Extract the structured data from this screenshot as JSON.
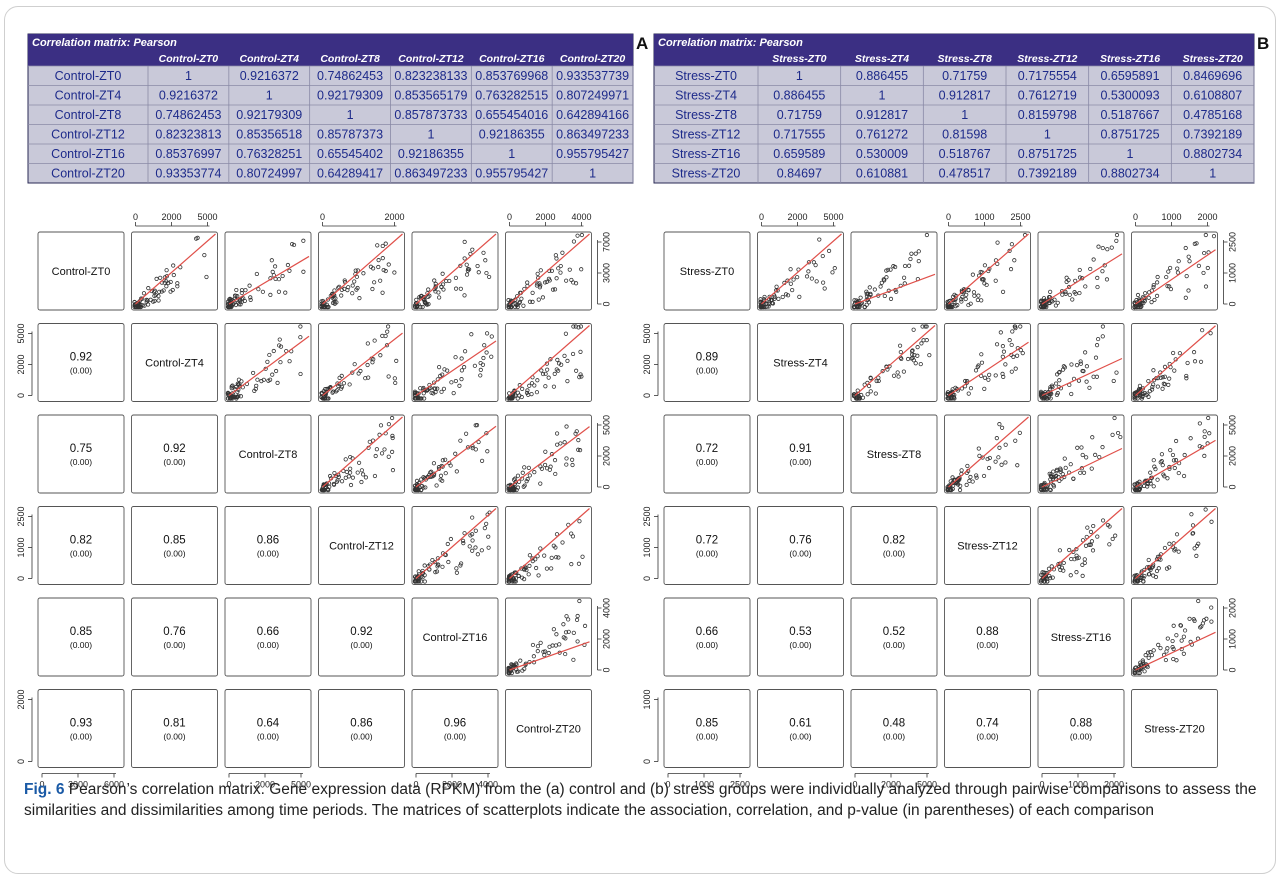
{
  "panels": [
    {
      "letter": "A",
      "matrix_title": "Correlation matrix: Pearson",
      "headers": [
        "Control-ZT0",
        "Control-ZT4",
        "Control-ZT8",
        "Control-ZT12",
        "Control-ZT16",
        "Control-ZT20"
      ],
      "rows": [
        {
          "label": "Control-ZT0",
          "values": [
            "1",
            "0.9216372",
            "0.74862453",
            "0.823238133",
            "0.853769968",
            "0.933537739"
          ]
        },
        {
          "label": "Control-ZT4",
          "values": [
            "0.9216372",
            "1",
            "0.92179309",
            "0.853565179",
            "0.763282515",
            "0.807249971"
          ]
        },
        {
          "label": "Control-ZT8",
          "values": [
            "0.74862453",
            "0.92179309",
            "1",
            "0.857873733",
            "0.655454016",
            "0.642894166"
          ]
        },
        {
          "label": "Control-ZT12",
          "values": [
            "0.82323813",
            "0.85356518",
            "0.85787373",
            "1",
            "0.92186355",
            "0.863497233"
          ]
        },
        {
          "label": "Control-ZT16",
          "values": [
            "0.85376997",
            "0.76328251",
            "0.65545402",
            "0.92186355",
            "1",
            "0.955795427"
          ]
        },
        {
          "label": "Control-ZT20",
          "values": [
            "0.93353774",
            "0.80724997",
            "0.64289417",
            "0.863497233",
            "0.955795427",
            "1"
          ]
        }
      ],
      "diag": [
        "Control-ZT0",
        "Control-ZT4",
        "Control-ZT8",
        "Control-ZT12",
        "Control-ZT16",
        "Control-ZT20"
      ],
      "lower": [
        [
          null,
          null,
          null,
          null,
          null,
          null
        ],
        [
          "0.92",
          null,
          null,
          null,
          null,
          null
        ],
        [
          "0.75",
          "0.92",
          null,
          null,
          null,
          null
        ],
        [
          "0.82",
          "0.85",
          "0.86",
          null,
          null,
          null
        ],
        [
          "0.85",
          "0.76",
          "0.66",
          "0.92",
          null,
          null
        ],
        [
          "0.93",
          "0.81",
          "0.64",
          "0.86",
          "0.96",
          null
        ]
      ],
      "pvalue": "(0.00)",
      "top_ticks": [
        [
          "0",
          "2000",
          "5000"
        ],
        null,
        [
          "0",
          "2000"
        ],
        null,
        [
          "0",
          "2000",
          "4000"
        ]
      ],
      "top_ticks_second": [
        null,
        null,
        [
          "0",
          "1000",
          "2500"
        ],
        null,
        [
          "0",
          "2000",
          "4000"
        ]
      ],
      "bottom_ticks": [
        [
          "0",
          "3000",
          "6000"
        ],
        null,
        [
          "0",
          "2000",
          "5000"
        ],
        null,
        [
          "0",
          "2000",
          "4000"
        ],
        null
      ],
      "right_ticks": [
        [
          "0",
          "3000",
          "7000"
        ],
        null,
        [
          "0",
          "2000",
          "5000"
        ],
        null,
        [
          "0",
          "2000",
          "4000"
        ],
        null
      ],
      "left_ticks": [
        null,
        [
          "0",
          "2000",
          "5000"
        ],
        null,
        [
          "0",
          "1000",
          "2500"
        ],
        null,
        [
          "0",
          "2000"
        ]
      ]
    },
    {
      "letter": "B",
      "matrix_title": "Correlation matrix: Pearson",
      "headers": [
        "Stress-ZT0",
        "Stress-ZT4",
        "Stress-ZT8",
        "Stress-ZT12",
        "Stress-ZT16",
        "Stress-ZT20"
      ],
      "rows": [
        {
          "label": "Stress-ZT0",
          "values": [
            "1",
            "0.886455",
            "0.71759",
            "0.7175554",
            "0.6595891",
            "0.8469696"
          ]
        },
        {
          "label": "Stress-ZT4",
          "values": [
            "0.886455",
            "1",
            "0.912817",
            "0.7612719",
            "0.5300093",
            "0.6108807"
          ]
        },
        {
          "label": "Stress-ZT8",
          "values": [
            "0.71759",
            "0.912817",
            "1",
            "0.8159798",
            "0.5187667",
            "0.4785168"
          ]
        },
        {
          "label": "Stress-ZT12",
          "values": [
            "0.717555",
            "0.761272",
            "0.81598",
            "1",
            "0.8751725",
            "0.7392189"
          ]
        },
        {
          "label": "Stress-ZT16",
          "values": [
            "0.659589",
            "0.530009",
            "0.518767",
            "0.8751725",
            "1",
            "0.8802734"
          ]
        },
        {
          "label": "Stress-ZT20",
          "values": [
            "0.84697",
            "0.610881",
            "0.478517",
            "0.7392189",
            "0.8802734",
            "1"
          ]
        }
      ],
      "diag": [
        "Stress-ZT0",
        "Stress-ZT4",
        "Stress-ZT8",
        "Stress-ZT12",
        "Stress-ZT16",
        "Stress-ZT20"
      ],
      "lower": [
        [
          null,
          null,
          null,
          null,
          null,
          null
        ],
        [
          "0.89",
          null,
          null,
          null,
          null,
          null
        ],
        [
          "0.72",
          "0.91",
          null,
          null,
          null,
          null
        ],
        [
          "0.72",
          "0.76",
          "0.82",
          null,
          null,
          null
        ],
        [
          "0.66",
          "0.53",
          "0.52",
          "0.88",
          null,
          null
        ],
        [
          "0.85",
          "0.61",
          "0.48",
          "0.74",
          "0.88",
          null
        ]
      ],
      "pvalue": "(0.00)",
      "top_ticks": [
        null,
        [
          "0",
          "2000",
          "5000"
        ],
        null,
        [
          "0",
          "1000",
          "2500"
        ],
        null,
        [
          "0",
          "1000",
          "2000"
        ]
      ],
      "bottom_ticks": [
        [
          "0",
          "1000",
          "2500"
        ],
        null,
        [
          "0",
          "2000",
          "5000"
        ],
        null,
        [
          "0",
          "1000",
          "2000"
        ],
        null
      ],
      "right_ticks": [
        [
          "0",
          "1000",
          "2500"
        ],
        null,
        [
          "0",
          "2000",
          "5000"
        ],
        null,
        [
          "0",
          "1000",
          "2000"
        ],
        null
      ],
      "left_ticks": [
        null,
        [
          "0",
          "2000",
          "5000"
        ],
        null,
        [
          "0",
          "1000",
          "2500"
        ],
        null,
        [
          "0",
          "1000"
        ]
      ]
    }
  ],
  "caption": {
    "fig_label": "Fig. 6",
    "text": " Pearson’s correlation matrix. Gene expression data (RPKM) from the (a) control and (b) stress groups were individually analyzed through pairwise comparisons to assess the similarities and dissimilarities among time periods. The matrices of scatterplots indicate the association, correlation, and p-value (in parentheses) of each comparison"
  },
  "colors": {
    "header_bg": "#3b2f83",
    "header_text": "#ffffff",
    "cell_bg": "#c9c9d9",
    "cell_text": "#1d2a8a",
    "fit_line": "#e0504a",
    "points": "#333333"
  }
}
